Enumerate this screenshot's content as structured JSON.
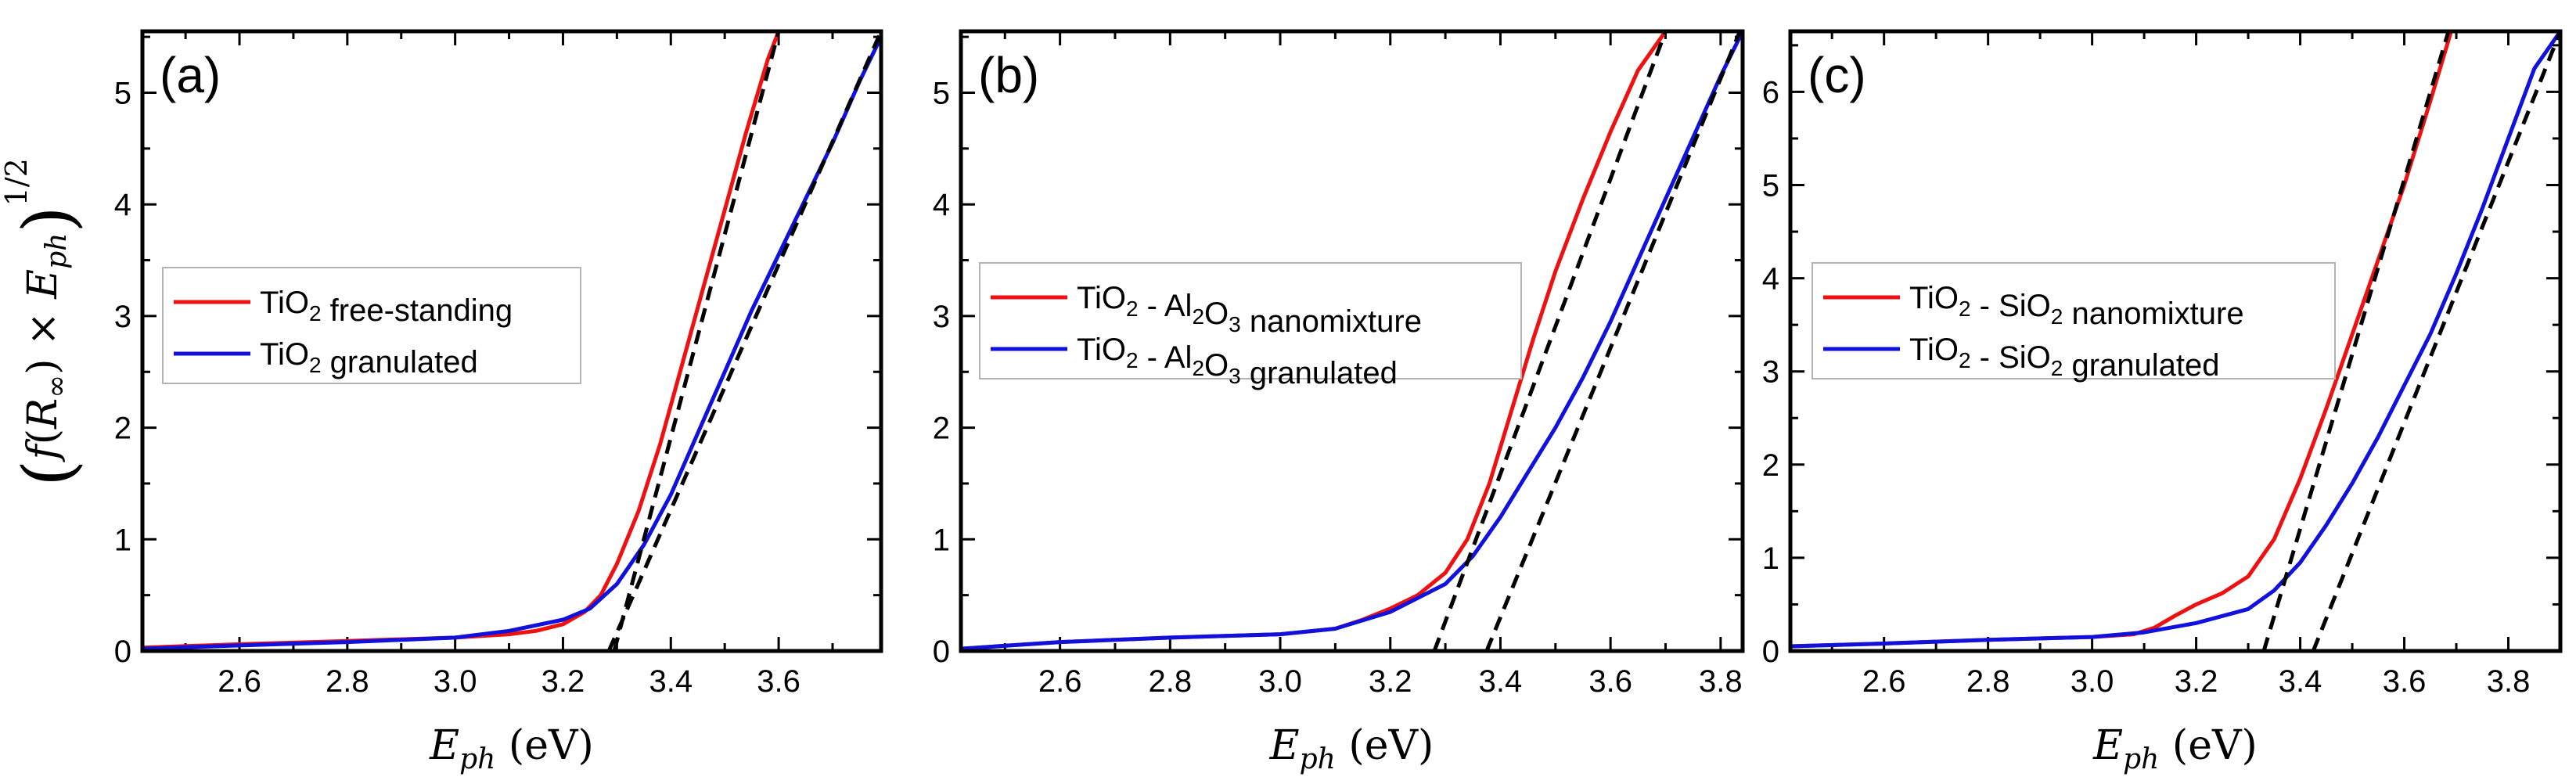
{
  "figure": {
    "ylabel": {
      "open": "(",
      "f": "f",
      "paren_l": "(",
      "R": "R",
      "inf": "∞",
      "paren_r": ")",
      "times": " × ",
      "E": "E",
      "sub": "ph",
      "close": ")",
      "power": "1/2"
    },
    "xlabel": {
      "E": "E",
      "sub": "ph",
      "unit": " (eV)"
    }
  },
  "chart_data": [
    {
      "type": "line",
      "panel": "(a)",
      "xlim": [
        2.42,
        3.79
      ],
      "ylim": [
        0,
        5.55
      ],
      "xticks": [
        2.6,
        2.8,
        3.0,
        3.2,
        3.4,
        3.6
      ],
      "xtick_labels": [
        "2.6",
        "2.8",
        "3.0",
        "3.2",
        "3.4",
        "3.6"
      ],
      "yticks": [
        0,
        1,
        2,
        3,
        4,
        5
      ],
      "ytick_labels": [
        "0",
        "1",
        "2",
        "3",
        "4",
        "5"
      ],
      "legend_position": "center-left",
      "series": [
        {
          "name": "TiO2 free-standing",
          "label_parts": [
            [
              "TiO",
              ""
            ],
            [
              "2",
              "sub"
            ],
            [
              " free-standing",
              ""
            ]
          ],
          "color": "#ee1111",
          "x": [
            2.42,
            2.6,
            2.8,
            3.0,
            3.1,
            3.15,
            3.2,
            3.24,
            3.27,
            3.3,
            3.34,
            3.38,
            3.42,
            3.46,
            3.5,
            3.54,
            3.58,
            3.6
          ],
          "y": [
            0.03,
            0.06,
            0.09,
            0.12,
            0.15,
            0.18,
            0.24,
            0.35,
            0.5,
            0.78,
            1.25,
            1.85,
            2.55,
            3.25,
            3.95,
            4.65,
            5.3,
            5.55
          ]
        },
        {
          "name": "TiO2 granulated",
          "label_parts": [
            [
              "TiO",
              ""
            ],
            [
              "2",
              "sub"
            ],
            [
              " granulated",
              ""
            ]
          ],
          "color": "#1111dd",
          "x": [
            2.42,
            2.6,
            2.8,
            3.0,
            3.1,
            3.2,
            3.25,
            3.3,
            3.35,
            3.4,
            3.45,
            3.5,
            3.55,
            3.6,
            3.65,
            3.7,
            3.75,
            3.79
          ],
          "y": [
            0.02,
            0.05,
            0.08,
            0.12,
            0.18,
            0.28,
            0.38,
            0.6,
            0.95,
            1.4,
            1.95,
            2.5,
            3.05,
            3.55,
            4.05,
            4.55,
            5.1,
            5.5
          ]
        }
      ],
      "fit_lines": [
        {
          "x": [
            3.295,
            3.6
          ],
          "y": [
            0,
            5.55
          ]
        },
        {
          "x": [
            3.285,
            3.79
          ],
          "y": [
            0,
            5.55
          ]
        }
      ]
    },
    {
      "type": "line",
      "panel": "(b)",
      "xlim": [
        2.42,
        3.84
      ],
      "ylim": [
        0,
        5.55
      ],
      "xticks": [
        2.6,
        2.8,
        3.0,
        3.2,
        3.4,
        3.6,
        3.8
      ],
      "xtick_labels": [
        "2.6",
        "2.8",
        "3.0",
        "3.2",
        "3.4",
        "3.6",
        "3.8"
      ],
      "yticks": [
        0,
        1,
        2,
        3,
        4,
        5
      ],
      "ytick_labels": [
        "0",
        "1",
        "2",
        "3",
        "4",
        "5"
      ],
      "legend_position": "center-left",
      "series": [
        {
          "name": "TiO2 - Al2O3 nanomixture",
          "label_parts": [
            [
              "TiO",
              ""
            ],
            [
              "2",
              "sub"
            ],
            [
              " - Al",
              ""
            ],
            [
              "2",
              "sub"
            ],
            [
              "O",
              ""
            ],
            [
              "3",
              "sub"
            ],
            [
              " nanomixture",
              ""
            ]
          ],
          "color": "#ee1111",
          "x": [
            2.42,
            2.6,
            2.8,
            3.0,
            3.1,
            3.15,
            3.2,
            3.25,
            3.3,
            3.34,
            3.38,
            3.42,
            3.46,
            3.5,
            3.55,
            3.6,
            3.65,
            3.7
          ],
          "y": [
            0.02,
            0.08,
            0.12,
            0.15,
            0.2,
            0.28,
            0.38,
            0.5,
            0.7,
            1.0,
            1.5,
            2.15,
            2.8,
            3.4,
            4.05,
            4.65,
            5.2,
            5.55
          ]
        },
        {
          "name": "TiO2 - Al2O3 granulated",
          "label_parts": [
            [
              "TiO",
              ""
            ],
            [
              "2",
              "sub"
            ],
            [
              " - Al",
              ""
            ],
            [
              "2",
              "sub"
            ],
            [
              "O",
              ""
            ],
            [
              "3",
              "sub"
            ],
            [
              " granulated",
              ""
            ]
          ],
          "color": "#1111dd",
          "x": [
            2.42,
            2.6,
            2.8,
            3.0,
            3.1,
            3.2,
            3.3,
            3.35,
            3.4,
            3.45,
            3.5,
            3.55,
            3.6,
            3.65,
            3.7,
            3.75,
            3.8,
            3.84
          ],
          "y": [
            0.02,
            0.08,
            0.12,
            0.15,
            0.2,
            0.35,
            0.6,
            0.85,
            1.2,
            1.6,
            2.0,
            2.45,
            2.95,
            3.5,
            4.05,
            4.6,
            5.15,
            5.55
          ]
        }
      ],
      "fit_lines": [
        {
          "x": [
            3.28,
            3.7
          ],
          "y": [
            0,
            5.55
          ]
        },
        {
          "x": [
            3.375,
            3.835
          ],
          "y": [
            0,
            5.55
          ]
        }
      ]
    },
    {
      "type": "line",
      "panel": "(c)",
      "xlim": [
        2.42,
        3.9
      ],
      "ylim": [
        0,
        6.65
      ],
      "xticks": [
        2.6,
        2.8,
        3.0,
        3.2,
        3.4,
        3.6,
        3.8
      ],
      "xtick_labels": [
        "2.6",
        "2.8",
        "3.0",
        "3.2",
        "3.4",
        "3.6",
        "3.8"
      ],
      "yticks": [
        0,
        1,
        2,
        3,
        4,
        5,
        6
      ],
      "ytick_labels": [
        "0",
        "1",
        "2",
        "3",
        "4",
        "5",
        "6"
      ],
      "legend_position": "center-left",
      "series": [
        {
          "name": "TiO2 - SiO2 nanomixture",
          "label_parts": [
            [
              "TiO",
              ""
            ],
            [
              "2",
              "sub"
            ],
            [
              " - SiO",
              ""
            ],
            [
              "2",
              "sub"
            ],
            [
              " nanomixture",
              ""
            ]
          ],
          "color": "#ee1111",
          "x": [
            2.42,
            2.6,
            2.8,
            3.0,
            3.08,
            3.12,
            3.16,
            3.2,
            3.25,
            3.3,
            3.35,
            3.4,
            3.45,
            3.5,
            3.55,
            3.6,
            3.65,
            3.69
          ],
          "y": [
            0.05,
            0.08,
            0.12,
            0.15,
            0.18,
            0.25,
            0.38,
            0.5,
            0.62,
            0.8,
            1.2,
            1.85,
            2.6,
            3.4,
            4.2,
            5.0,
            5.9,
            6.65
          ]
        },
        {
          "name": "TiO2 - SiO2 granulated",
          "label_parts": [
            [
              "TiO",
              ""
            ],
            [
              "2",
              "sub"
            ],
            [
              " - SiO",
              ""
            ],
            [
              "2",
              "sub"
            ],
            [
              " granulated",
              ""
            ]
          ],
          "color": "#1111dd",
          "x": [
            2.42,
            2.6,
            2.8,
            3.0,
            3.1,
            3.2,
            3.3,
            3.35,
            3.4,
            3.45,
            3.5,
            3.55,
            3.6,
            3.65,
            3.7,
            3.75,
            3.8,
            3.85,
            3.9
          ],
          "y": [
            0.05,
            0.08,
            0.12,
            0.15,
            0.2,
            0.3,
            0.45,
            0.65,
            0.95,
            1.35,
            1.8,
            2.3,
            2.85,
            3.4,
            4.05,
            4.75,
            5.5,
            6.25,
            6.65
          ]
        }
      ],
      "fit_lines": [
        {
          "x": [
            3.33,
            3.685
          ],
          "y": [
            0,
            6.65
          ]
        },
        {
          "x": [
            3.425,
            3.9
          ],
          "y": [
            0,
            6.65
          ]
        }
      ]
    }
  ]
}
